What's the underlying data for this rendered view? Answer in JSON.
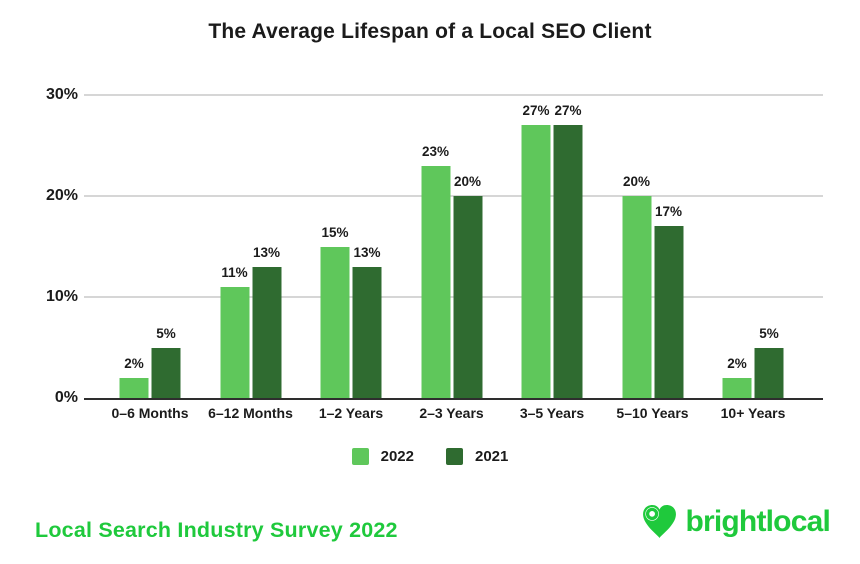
{
  "title": "The Average Lifespan of a Local SEO Client",
  "chart_data": {
    "type": "bar",
    "categories": [
      "0–6 Months",
      "6–12 Months",
      "1–2 Years",
      "2–3 Years",
      "3–5 Years",
      "5–10 Years",
      "10+ Years"
    ],
    "series": [
      {
        "name": "2022",
        "color": "#5fc75b",
        "values": [
          2,
          11,
          15,
          23,
          27,
          20,
          2
        ]
      },
      {
        "name": "2021",
        "color": "#2f6b30",
        "values": [
          5,
          13,
          13,
          20,
          27,
          17,
          5
        ]
      }
    ],
    "value_suffix": "%",
    "ylim": [
      0,
      30
    ],
    "yticks": [
      {
        "label": "30%",
        "value": 30
      },
      {
        "label": "20%",
        "value": 20
      },
      {
        "label": "10%",
        "value": 10
      },
      {
        "label": "0%",
        "value": 0
      }
    ],
    "grid": true,
    "legend_position": "bottom",
    "title": "The Average Lifespan of a Local SEO Client"
  },
  "footer": {
    "caption": "Local Search Industry Survey 2022",
    "caption_color": "#1fc93c",
    "brand": "brightlocal",
    "brand_color": "#1fc93c",
    "brand_icon": "heart-pin-icon"
  },
  "colors": {
    "title_text": "#1b1b1b",
    "gridline": "#d6d6d6",
    "axis": "#2e2e2e",
    "series_2022": "#5fc75b",
    "series_2021": "#2f6b30",
    "brand_green": "#1fc93c"
  }
}
